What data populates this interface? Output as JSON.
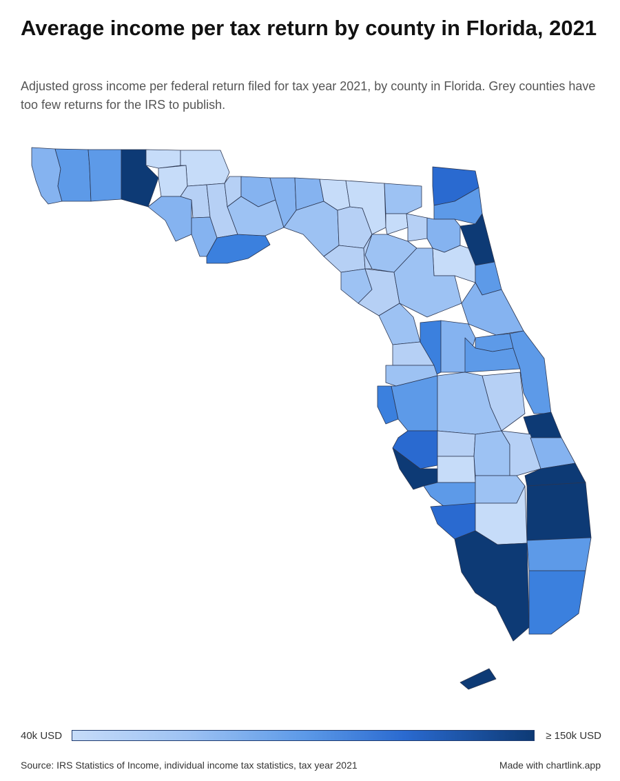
{
  "title": "Average income per tax return by county in Florida, 2021",
  "subtitle": "Adjusted gross income per federal return filed for tax year 2021, by county in Florida. Grey counties have too few returns for the IRS to publish.",
  "legend": {
    "min_label": "40k USD",
    "max_label": "≥ 150k USD"
  },
  "footer": {
    "source": "Source: IRS Statistics of Income, individual income tax statistics, tax year 2021",
    "credit": "Made with chartlink.app"
  },
  "colors": {
    "scale_low": "#c6dcf9",
    "scale_mid": "#5d9ae8",
    "scale_high": "#0d3a75",
    "border": "#2a3550",
    "background": "#ffffff"
  },
  "map_type": "choropleth",
  "region": "Florida counties"
}
